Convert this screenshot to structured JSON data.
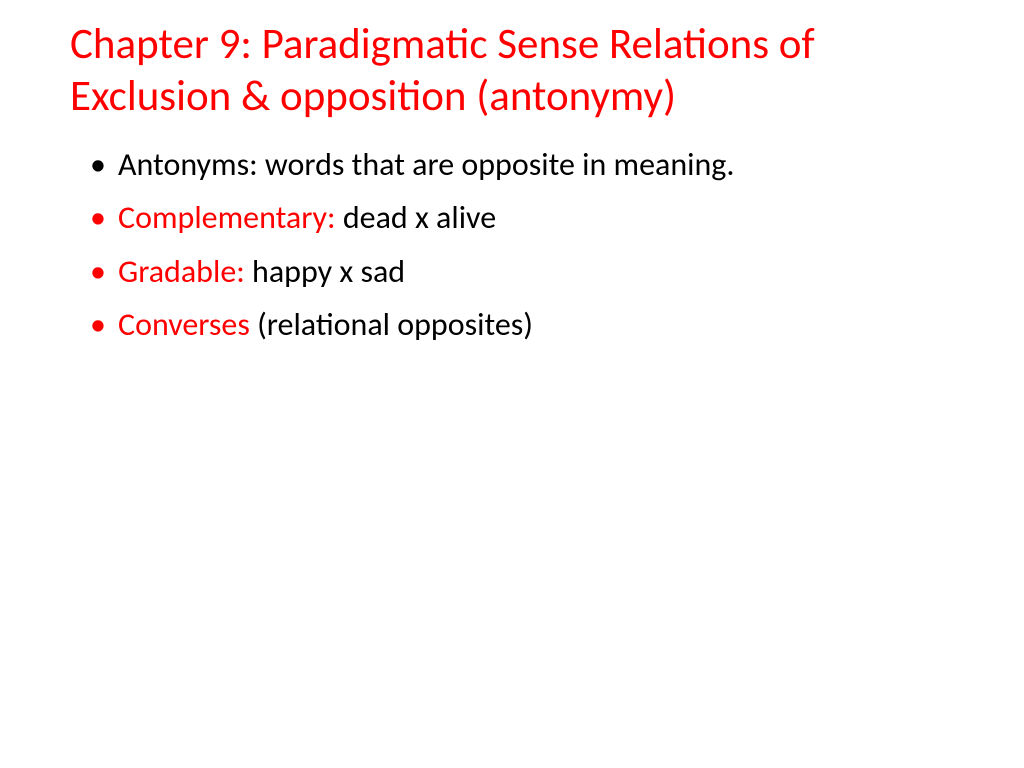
{
  "colors": {
    "title": "#ff0000",
    "bullet_marker": "#ff0000",
    "bullet1_marker": "#000000",
    "body_black": "#000000",
    "body_red": "#ff0000",
    "background": "#ffffff"
  },
  "typography": {
    "title_fontsize": 43,
    "body_fontsize": 32,
    "font_family": "Calibri"
  },
  "title": "Chapter 9: Paradigmatic Sense Relations of Exclusion & opposition (antonymy)",
  "bullets": [
    {
      "marker_color": "#000000",
      "spans": [
        {
          "text": "Antonyms: words that are opposite in meaning.",
          "color": "#000000"
        }
      ]
    },
    {
      "marker_color": "#ff0000",
      "spans": [
        {
          "text": "Complementary: ",
          "color": "#ff0000"
        },
        {
          "text": "dead x alive",
          "color": "#000000"
        }
      ]
    },
    {
      "marker_color": "#ff0000",
      "spans": [
        {
          "text": "Gradable: ",
          "color": "#ff0000"
        },
        {
          "text": "happy x sad",
          "color": "#000000"
        }
      ]
    },
    {
      "marker_color": "#ff0000",
      "spans": [
        {
          "text": "Converses ",
          "color": "#ff0000"
        },
        {
          "text": "(relational opposites)",
          "color": "#000000"
        }
      ]
    }
  ]
}
